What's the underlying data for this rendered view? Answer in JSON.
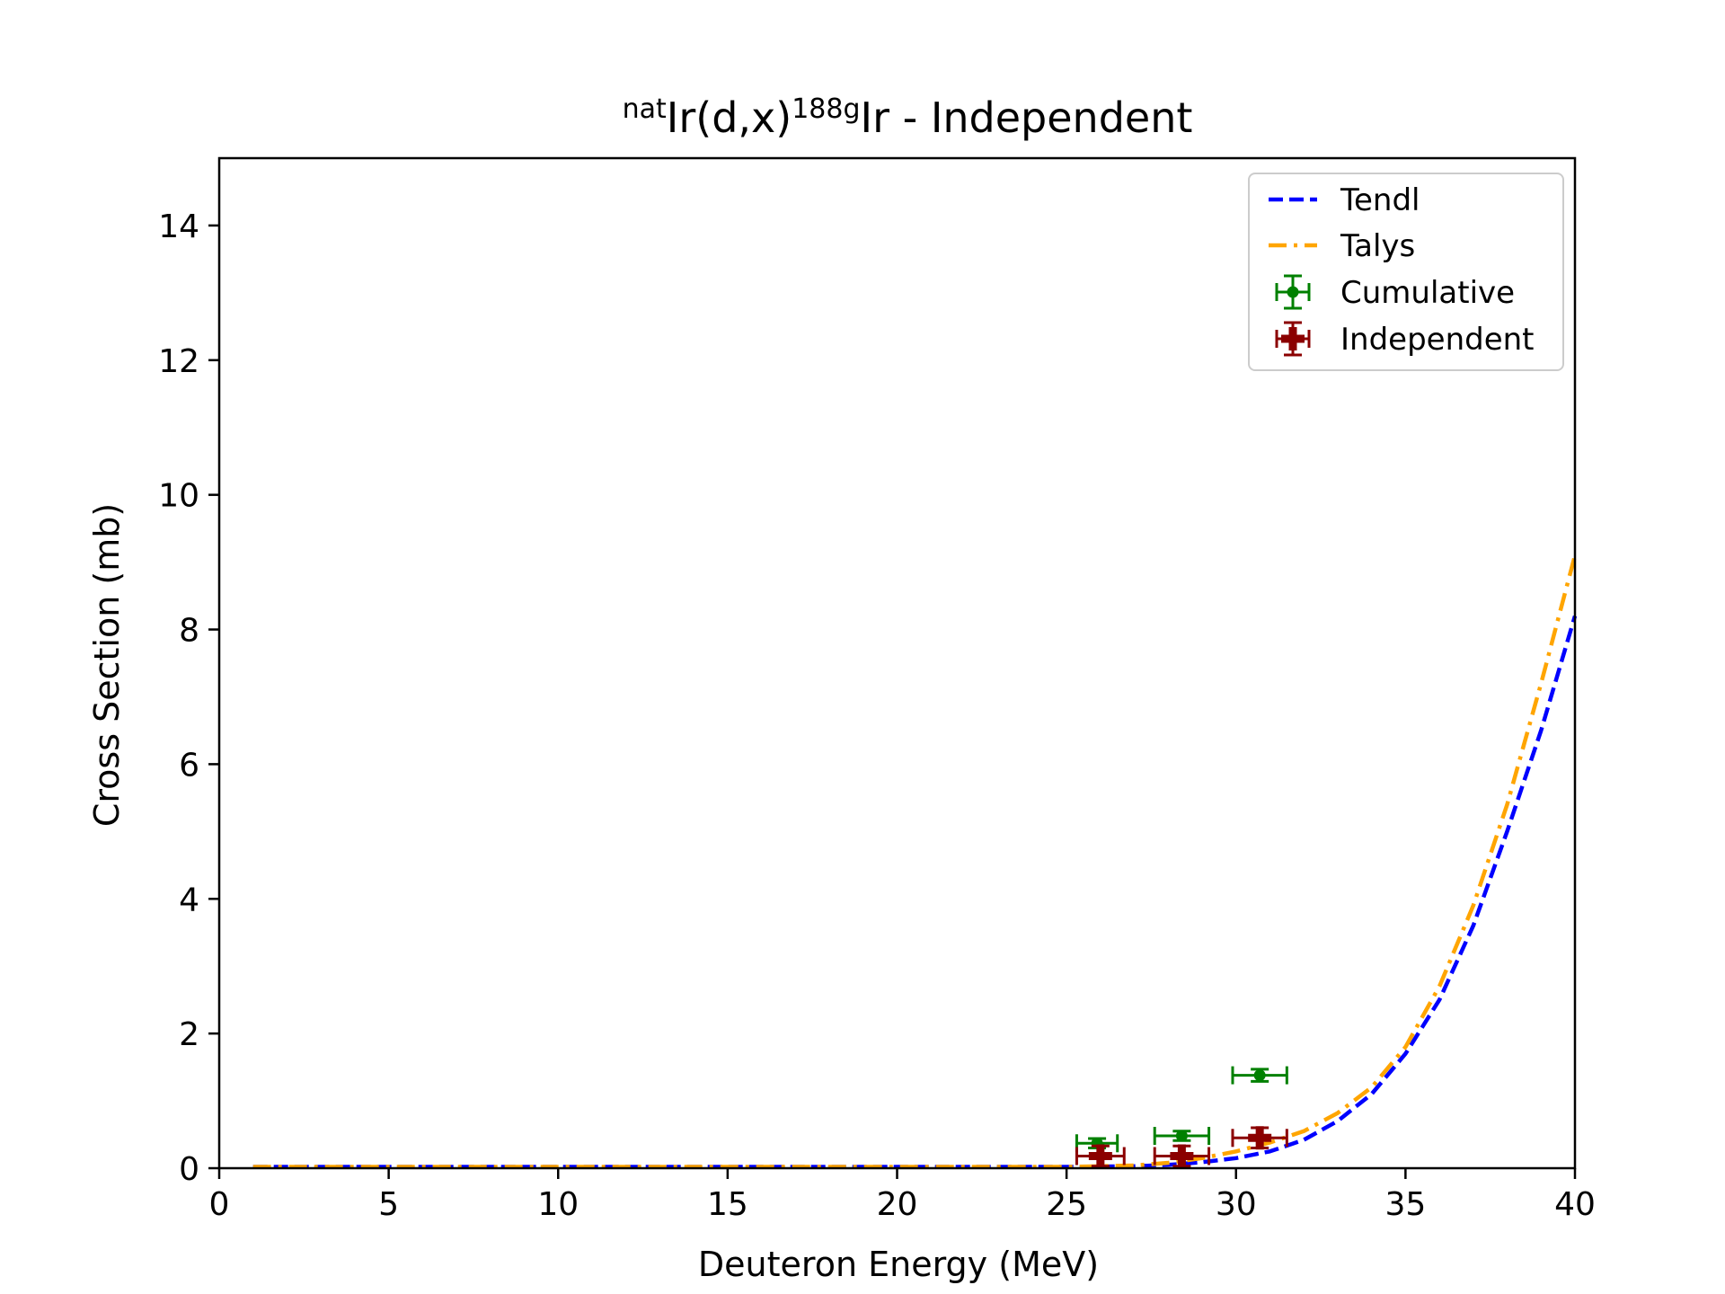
{
  "chart_data": {
    "type": "scatter",
    "title": {
      "prefix_sup": "nat",
      "main_a": "Ir(d,x)",
      "mid_sup": "188g",
      "main_b": "Ir - Independent"
    },
    "xlabel": "Deuteron Energy (MeV)",
    "ylabel": "Cross Section (mb)",
    "xlim": [
      0,
      40
    ],
    "ylim": [
      0,
      15
    ],
    "x_ticks": [
      0,
      5,
      10,
      15,
      20,
      25,
      30,
      35,
      40
    ],
    "y_ticks": [
      0,
      2,
      4,
      6,
      8,
      10,
      12,
      14
    ],
    "x_tick_labels": [
      "0",
      "5",
      "10",
      "15",
      "20",
      "25",
      "30",
      "35",
      "40"
    ],
    "y_tick_labels": [
      "0",
      "2",
      "4",
      "6",
      "8",
      "10",
      "12",
      "14"
    ],
    "grid": false,
    "legend_position": "top-right",
    "series": [
      {
        "name": "Tendl",
        "kind": "line",
        "style": "dashed",
        "color": "#0000ff",
        "x": [
          1,
          5,
          10,
          15,
          20,
          25,
          27,
          28,
          29,
          30,
          31,
          32,
          33,
          34,
          35,
          36,
          37,
          38,
          39,
          40
        ],
        "y": [
          0.02,
          0.02,
          0.02,
          0.02,
          0.02,
          0.02,
          0.03,
          0.05,
          0.09,
          0.15,
          0.25,
          0.42,
          0.7,
          1.1,
          1.7,
          2.5,
          3.6,
          5.0,
          6.5,
          8.2
        ]
      },
      {
        "name": "Talys",
        "kind": "line",
        "style": "dashdot",
        "color": "#ffa500",
        "x": [
          1,
          5,
          10,
          15,
          20,
          25,
          27,
          28,
          29,
          30,
          31,
          32,
          33,
          34,
          35,
          36,
          37,
          38,
          39,
          40
        ],
        "y": [
          0.02,
          0.02,
          0.02,
          0.02,
          0.02,
          0.02,
          0.04,
          0.08,
          0.15,
          0.25,
          0.38,
          0.55,
          0.82,
          1.2,
          1.8,
          2.7,
          3.9,
          5.4,
          7.2,
          9.1
        ]
      },
      {
        "name": "Cumulative",
        "kind": "errorbar",
        "marker": "circle",
        "color": "#008000",
        "points": [
          {
            "x": 25.9,
            "y": 0.37,
            "xerr": 0.6,
            "yerr": 0.07
          },
          {
            "x": 28.4,
            "y": 0.48,
            "xerr": 0.8,
            "yerr": 0.07
          },
          {
            "x": 30.7,
            "y": 1.38,
            "xerr": 0.8,
            "yerr": 0.09
          }
        ]
      },
      {
        "name": "Independent",
        "kind": "errorbar",
        "marker": "plus",
        "color": "#8b0000",
        "points": [
          {
            "x": 26.0,
            "y": 0.18,
            "xerr": 0.7,
            "yerr": 0.15
          },
          {
            "x": 28.4,
            "y": 0.18,
            "xerr": 0.8,
            "yerr": 0.15
          },
          {
            "x": 30.7,
            "y": 0.45,
            "xerr": 0.8,
            "yerr": 0.15
          }
        ]
      }
    ]
  }
}
